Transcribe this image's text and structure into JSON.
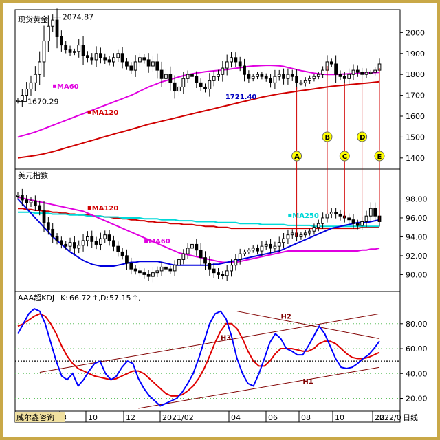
{
  "colors": {
    "frame": "#c9a847",
    "candle": "#000000",
    "ma60": "#e000e0",
    "ma120": "#d00000",
    "ma250": "#00d8d8",
    "dxy_blue": "#0000dd",
    "kdj_k": "#0000ff",
    "kdj_d": "#e00000",
    "marker_fill": "#ffff00",
    "marker_line": "#d00000",
    "trendline": "#800000",
    "footer_bg": "#f0e0a0"
  },
  "chart_data": [
    {
      "type": "candlestick",
      "title": "现货黄金",
      "ylim": [
        1360,
        2090
      ],
      "yticks": [
        "2000",
        "1900",
        "1800",
        "1700",
        "1600",
        "1500",
        "1400"
      ],
      "ytick_values": [
        2000,
        1900,
        1800,
        1700,
        1600,
        1500,
        1400
      ],
      "annotations": {
        "high": "2074.87",
        "low": "1670.29",
        "mid": "1721.40"
      },
      "labels": {
        "ma60": "MA60",
        "ma120": "MA120"
      },
      "markers": [
        "A",
        "B",
        "C",
        "D",
        "E"
      ],
      "close": [
        1675,
        1700,
        1730,
        1760,
        1800,
        1860,
        1960,
        2030,
        2060,
        1980,
        1940,
        1920,
        1905,
        1910,
        1940,
        1890,
        1880,
        1870,
        1900,
        1880,
        1870,
        1860,
        1880,
        1900,
        1860,
        1840,
        1820,
        1860,
        1880,
        1870,
        1840,
        1860,
        1820,
        1780,
        1800,
        1760,
        1720,
        1740,
        1780,
        1800,
        1790,
        1760,
        1740,
        1730,
        1770,
        1790,
        1800,
        1830,
        1860,
        1880,
        1860,
        1840,
        1800,
        1780,
        1790,
        1800,
        1790,
        1780,
        1760,
        1790,
        1800,
        1780,
        1800,
        1790,
        1760,
        1760,
        1770,
        1780,
        1790,
        1800,
        1820,
        1860,
        1850,
        1800,
        1790,
        1780,
        1800,
        1820,
        1810,
        1800,
        1810,
        1810,
        1820,
        1850
      ],
      "ma60": [
        1500,
        1506,
        1512,
        1518,
        1524,
        1532,
        1540,
        1548,
        1556,
        1564,
        1572,
        1580,
        1588,
        1596,
        1604,
        1612,
        1620,
        1628,
        1636,
        1644,
        1652,
        1660,
        1668,
        1676,
        1684,
        1692,
        1700,
        1710,
        1720,
        1730,
        1740,
        1748,
        1756,
        1764,
        1770,
        1776,
        1782,
        1788,
        1794,
        1799,
        1803,
        1807,
        1810,
        1813,
        1815,
        1817,
        1819,
        1821,
        1823,
        1826,
        1829,
        1832,
        1835,
        1838,
        1840,
        1841,
        1842,
        1843,
        1843,
        1842,
        1841,
        1838,
        1833,
        1828,
        1823,
        1818,
        1814,
        1810,
        1806,
        1803,
        1801,
        1800,
        1800,
        1800,
        1801,
        1802,
        1803,
        1804,
        1805,
        1806,
        1807,
        1808,
        1809,
        1810
      ],
      "ma120": [
        1400,
        1403,
        1406,
        1409,
        1412,
        1416,
        1420,
        1425,
        1430,
        1436,
        1442,
        1448,
        1454,
        1460,
        1466,
        1472,
        1478,
        1484,
        1490,
        1496,
        1502,
        1508,
        1514,
        1520,
        1525,
        1531,
        1537,
        1543,
        1549,
        1555,
        1561,
        1566,
        1571,
        1576,
        1581,
        1586,
        1591,
        1596,
        1601,
        1606,
        1611,
        1616,
        1621,
        1626,
        1631,
        1636,
        1641,
        1646,
        1651,
        1656,
        1661,
        1666,
        1671,
        1676,
        1681,
        1686,
        1691,
        1695,
        1699,
        1703,
        1707,
        1710,
        1713,
        1716,
        1719,
        1722,
        1725,
        1728,
        1731,
        1734,
        1737,
        1740,
        1743,
        1745,
        1747,
        1749,
        1751,
        1753,
        1755,
        1757,
        1759,
        1761,
        1763,
        1765
      ]
    },
    {
      "type": "candlestick",
      "title": "美元指数",
      "ylim": [
        88.5,
        100
      ],
      "yticks": [
        "98.00",
        "96.00",
        "94.00",
        "92.00",
        "90.00"
      ],
      "ytick_values": [
        98,
        96,
        94,
        92,
        90
      ],
      "labels": {
        "ma120": "MA120",
        "ma250": "MA250",
        "ma60": "MA60"
      },
      "close": [
        98.4,
        97.9,
        97.6,
        97.8,
        97.3,
        96.8,
        95.5,
        94.8,
        94.0,
        93.6,
        93.2,
        93.0,
        93.4,
        92.8,
        93.1,
        93.6,
        94.0,
        93.5,
        93.2,
        93.8,
        94.2,
        93.6,
        93.0,
        92.4,
        92.0,
        91.2,
        90.6,
        90.4,
        90.2,
        90.0,
        89.8,
        90.2,
        90.4,
        90.8,
        90.6,
        90.4,
        91.0,
        91.6,
        92.2,
        92.8,
        93.2,
        92.6,
        91.8,
        91.2,
        90.6,
        90.2,
        90.0,
        89.9,
        90.4,
        91.0,
        91.6,
        92.2,
        92.4,
        92.6,
        92.8,
        92.5,
        93.0,
        93.2,
        92.8,
        93.0,
        93.4,
        93.8,
        94.2,
        94.4,
        94.0,
        94.2,
        94.4,
        94.6,
        95.0,
        95.4,
        96.0,
        96.4,
        96.6,
        96.4,
        96.2,
        96.0,
        95.8,
        95.4,
        95.2,
        95.6,
        96.2,
        97.0,
        96.2,
        95.6
      ],
      "ma120": [
        97.0,
        97.0,
        96.9,
        96.9,
        96.8,
        96.8,
        96.7,
        96.7,
        96.6,
        96.6,
        96.5,
        96.5,
        96.4,
        96.4,
        96.3,
        96.3,
        96.3,
        96.2,
        96.2,
        96.2,
        96.1,
        96.1,
        96.0,
        96.0,
        95.9,
        95.9,
        95.8,
        95.8,
        95.7,
        95.7,
        95.6,
        95.6,
        95.5,
        95.5,
        95.5,
        95.4,
        95.4,
        95.4,
        95.3,
        95.3,
        95.3,
        95.2,
        95.2,
        95.1,
        95.1,
        95.1,
        95.0,
        95.0,
        95.0,
        94.9,
        94.9,
        94.9,
        94.9,
        94.9,
        94.9,
        94.9,
        94.9,
        94.9,
        94.9,
        94.9,
        94.9,
        94.9,
        94.9,
        94.9,
        94.9,
        94.9,
        94.9,
        94.9,
        94.9,
        94.9,
        94.9,
        94.9,
        94.9,
        94.9,
        94.9,
        94.9,
        94.9,
        94.9,
        94.9,
        95.0,
        95.0,
        95.0,
        95.0,
        95.0
      ],
      "ma250": [
        96.6,
        96.6,
        96.6,
        96.6,
        96.5,
        96.5,
        96.5,
        96.5,
        96.4,
        96.4,
        96.4,
        96.4,
        96.3,
        96.3,
        96.3,
        96.3,
        96.2,
        96.2,
        96.2,
        96.2,
        96.1,
        96.1,
        96.1,
        96.1,
        96.0,
        96.0,
        96.0,
        96.0,
        96.0,
        95.9,
        95.9,
        95.9,
        95.9,
        95.8,
        95.8,
        95.8,
        95.8,
        95.7,
        95.7,
        95.7,
        95.7,
        95.6,
        95.6,
        95.6,
        95.6,
        95.6,
        95.5,
        95.5,
        95.5,
        95.5,
        95.5,
        95.4,
        95.4,
        95.4,
        95.4,
        95.4,
        95.3,
        95.3,
        95.3,
        95.3,
        95.3,
        95.3,
        95.2,
        95.2,
        95.2,
        95.2,
        95.2,
        95.2,
        95.1,
        95.1,
        95.1,
        95.1,
        95.1,
        95.1,
        95.1,
        95.1,
        95.1,
        95.1,
        95.1,
        95.1,
        95.1,
        95.1,
        95.1,
        95.1
      ],
      "ma60": [
        98.2,
        98.1,
        98.0,
        97.9,
        97.8,
        97.7,
        97.6,
        97.5,
        97.4,
        97.3,
        97.2,
        97.1,
        97.0,
        96.9,
        96.8,
        96.7,
        96.5,
        96.3,
        96.1,
        95.9,
        95.7,
        95.5,
        95.3,
        95.1,
        94.9,
        94.7,
        94.5,
        94.3,
        94.1,
        93.9,
        93.7,
        93.5,
        93.3,
        93.1,
        92.9,
        92.7,
        92.5,
        92.3,
        92.2,
        92.1,
        92.0,
        91.9,
        91.8,
        91.7,
        91.6,
        91.5,
        91.4,
        91.3,
        91.3,
        91.3,
        91.3,
        91.4,
        91.5,
        91.6,
        91.7,
        91.8,
        91.9,
        92.0,
        92.1,
        92.2,
        92.3,
        92.4,
        92.5,
        92.5,
        92.5,
        92.5,
        92.5,
        92.5,
        92.5,
        92.5,
        92.5,
        92.5,
        92.5,
        92.5,
        92.5,
        92.5,
        92.5,
        92.5,
        92.5,
        92.6,
        92.6,
        92.7,
        92.7,
        92.8
      ],
      "blue_line": [
        98.0,
        97.5,
        97.0,
        96.5,
        96.0,
        95.5,
        95.0,
        94.5,
        94.0,
        93.6,
        93.2,
        92.8,
        92.4,
        92.1,
        91.8,
        91.5,
        91.3,
        91.1,
        91.0,
        90.9,
        90.9,
        90.9,
        90.9,
        91.0,
        91.1,
        91.2,
        91.3,
        91.3,
        91.4,
        91.4,
        91.4,
        91.4,
        91.4,
        91.3,
        91.2,
        91.1,
        91.0,
        91.0,
        91.0,
        91.0,
        91.0,
        91.0,
        91.0,
        91.0,
        91.0,
        91.1,
        91.1,
        91.2,
        91.3,
        91.4,
        91.5,
        91.6,
        91.7,
        91.8,
        91.9,
        92.0,
        92.1,
        92.2,
        92.3,
        92.4,
        92.5,
        92.7,
        92.9,
        93.1,
        93.3,
        93.5,
        93.7,
        93.9,
        94.1,
        94.3,
        94.5,
        94.7,
        94.9,
        95.0,
        95.1,
        95.2,
        95.3,
        95.4,
        95.5,
        95.5,
        95.5,
        95.6,
        95.7,
        95.8
      ]
    },
    {
      "type": "line",
      "title": "AAA超KDJ",
      "legend": {
        "k_label": "K:",
        "k_value": "66.72",
        "d_label": "D:",
        "d_value": "57.15",
        "arrow": "↑,"
      },
      "ylim": [
        12,
        97
      ],
      "yticks": [
        "80.00",
        "60.00",
        "40.00",
        "20.00"
      ],
      "ytick_values": [
        80,
        60,
        40,
        20
      ],
      "lines": [
        "H1",
        "H2",
        "H3"
      ],
      "k": [
        72,
        80,
        88,
        92,
        90,
        80,
        65,
        50,
        38,
        35,
        40,
        30,
        35,
        42,
        48,
        50,
        40,
        35,
        38,
        45,
        50,
        48,
        36,
        28,
        22,
        18,
        14,
        16,
        18,
        20,
        25,
        32,
        40,
        52,
        66,
        80,
        88,
        90,
        84,
        70,
        52,
        40,
        32,
        30,
        40,
        52,
        65,
        72,
        68,
        60,
        58,
        55,
        55,
        62,
        70,
        78,
        72,
        62,
        52,
        45,
        44,
        45,
        48,
        52,
        55,
        60,
        66
      ],
      "d": [
        78,
        80,
        83,
        86,
        88,
        86,
        80,
        72,
        62,
        54,
        48,
        44,
        42,
        40,
        38,
        37,
        36,
        35,
        36,
        38,
        40,
        42,
        42,
        40,
        36,
        32,
        28,
        24,
        22,
        22,
        23,
        26,
        30,
        36,
        44,
        54,
        65,
        74,
        80,
        80,
        76,
        68,
        58,
        50,
        46,
        46,
        50,
        56,
        60,
        60,
        60,
        59,
        58,
        58,
        60,
        64,
        66,
        66,
        64,
        60,
        56,
        53,
        52,
        52,
        53,
        55,
        57
      ]
    }
  ],
  "x_axis": {
    "ticks": [
      "3",
      "10",
      "12",
      "2021/02",
      "04",
      "06",
      "08",
      "10",
      "12",
      "2022/0"
    ]
  },
  "footer": {
    "brand": "威尔鑫咨询",
    "period": "日线"
  }
}
